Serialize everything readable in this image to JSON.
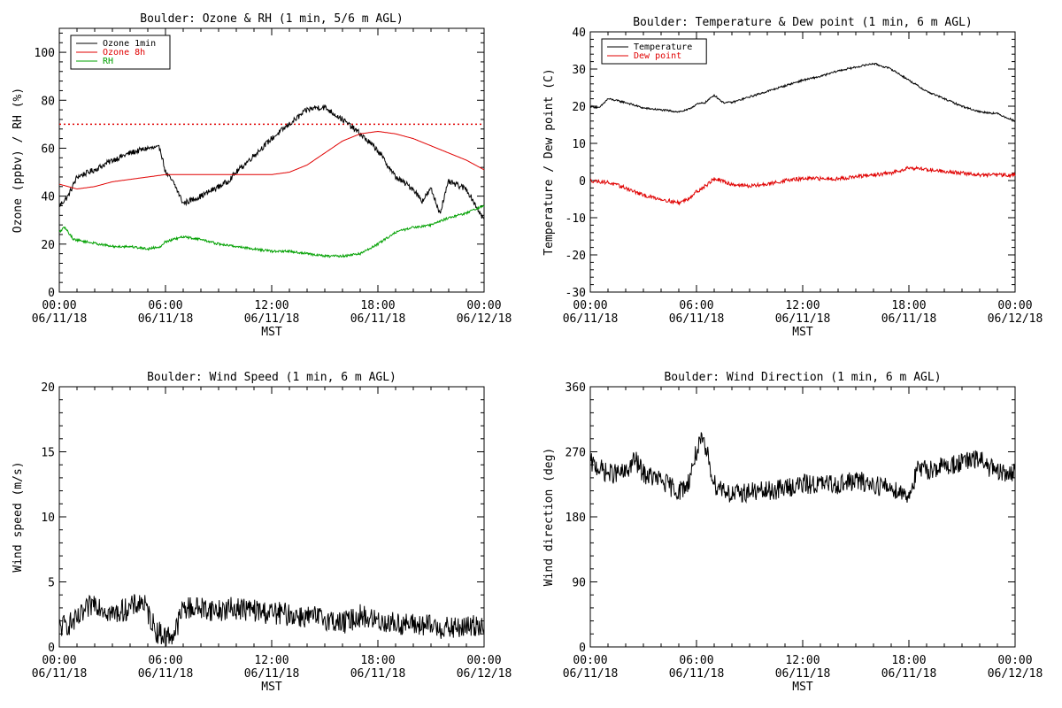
{
  "colors": {
    "black": "#000000",
    "red": "#e00000",
    "green": "#00a000",
    "background": "#ffffff"
  },
  "chart_data": [
    {
      "type": "line",
      "title": "Boulder: Ozone & RH (1 min, 5/6 m AGL)",
      "xlabel": "MST",
      "ylabel": "Ozone (ppbv) / RH (%)",
      "xlim": [
        0,
        24
      ],
      "ylim": [
        0,
        110
      ],
      "x_ticks": [
        {
          "x": 0,
          "time": "00:00",
          "date": "06/11/18"
        },
        {
          "x": 6,
          "time": "06:00",
          "date": "06/11/18"
        },
        {
          "x": 12,
          "time": "12:00",
          "date": "06/11/18"
        },
        {
          "x": 18,
          "time": "18:00",
          "date": "06/11/18"
        },
        {
          "x": 24,
          "time": "00:00",
          "date": "06/12/18"
        }
      ],
      "y_ticks": [
        0,
        20,
        40,
        60,
        80,
        100
      ],
      "grid": false,
      "legend": "top-left",
      "reference_lines": [
        {
          "y": 70,
          "color": "#e00000",
          "style": "dotted"
        }
      ],
      "series": [
        {
          "name": "Ozone 1min",
          "color": "#000000",
          "noise": 1.2,
          "x": [
            0,
            0.5,
            1,
            2,
            3,
            4,
            5,
            5.7,
            6,
            6.5,
            7,
            8,
            9,
            9.5,
            10,
            11,
            12,
            13,
            14,
            14.5,
            15,
            16,
            17,
            18,
            19,
            20,
            20.5,
            21,
            21.5,
            22,
            23,
            24
          ],
          "y": [
            36,
            40,
            48,
            51,
            55,
            58,
            60,
            60,
            50,
            45,
            37,
            40,
            44,
            46,
            50,
            57,
            64,
            70,
            76,
            77,
            77,
            72,
            66,
            59,
            48,
            43,
            38,
            43,
            33,
            46,
            43,
            30
          ]
        },
        {
          "name": "Ozone 8h",
          "color": "#e00000",
          "noise": 0,
          "x": [
            0,
            1,
            2,
            3,
            4,
            5,
            6,
            7,
            8,
            9,
            10,
            11,
            12,
            13,
            14,
            15,
            16,
            17,
            18,
            19,
            20,
            21,
            22,
            23,
            24
          ],
          "y": [
            45,
            43,
            44,
            46,
            47,
            48,
            49,
            49,
            49,
            49,
            49,
            49,
            49,
            50,
            53,
            58,
            63,
            66,
            67,
            66,
            64,
            61,
            58,
            55,
            51
          ]
        },
        {
          "name": "RH",
          "color": "#00a000",
          "noise": 0.5,
          "x": [
            0,
            0.3,
            0.8,
            1.5,
            3,
            4,
            5,
            5.7,
            6,
            6.5,
            7,
            8,
            9,
            10,
            11,
            12,
            13,
            14,
            15,
            16,
            17,
            18,
            19,
            20,
            21,
            22,
            23,
            24
          ],
          "y": [
            25,
            27,
            22,
            21,
            19,
            19,
            18,
            19,
            21,
            22,
            23,
            22,
            20,
            19,
            18,
            17,
            17,
            16,
            15,
            15,
            16,
            20,
            25,
            27,
            28,
            31,
            33,
            36
          ]
        }
      ]
    },
    {
      "type": "line",
      "title": "Boulder: Temperature & Dew point (1 min, 6 m AGL)",
      "xlabel": "MST",
      "ylabel": "Temperature / Dew point (C)",
      "xlim": [
        0,
        24
      ],
      "ylim": [
        -30,
        40
      ],
      "x_ticks": [
        {
          "x": 0,
          "time": "00:00",
          "date": "06/11/18"
        },
        {
          "x": 6,
          "time": "06:00",
          "date": "06/11/18"
        },
        {
          "x": 12,
          "time": "12:00",
          "date": "06/11/18"
        },
        {
          "x": 18,
          "time": "18:00",
          "date": "06/11/18"
        },
        {
          "x": 24,
          "time": "00:00",
          "date": "06/12/18"
        }
      ],
      "y_ticks": [
        -30,
        -20,
        -10,
        0,
        10,
        20,
        30,
        40
      ],
      "grid": false,
      "legend": "top-left",
      "series": [
        {
          "name": "Temperature",
          "color": "#000000",
          "noise": 0.25,
          "x": [
            0,
            0.5,
            1,
            2,
            3,
            4,
            5,
            5.5,
            6,
            6.5,
            7,
            7.5,
            8,
            9,
            10,
            11,
            12,
            13,
            14,
            15,
            16,
            17,
            18,
            19,
            20,
            21,
            22,
            23,
            24
          ],
          "y": [
            20,
            19.5,
            22,
            21,
            19.5,
            19,
            18.5,
            19,
            20.5,
            21,
            23,
            21,
            21,
            22.5,
            24,
            25.5,
            27,
            28,
            29.5,
            30.5,
            31.5,
            30,
            27,
            24,
            22,
            20,
            18.5,
            18,
            16
          ]
        },
        {
          "name": "Dew point",
          "color": "#e00000",
          "noise": 0.5,
          "x": [
            0,
            1,
            2,
            3,
            4,
            5,
            5.5,
            6,
            6.5,
            7,
            8,
            9,
            10,
            11,
            12,
            13,
            14,
            15,
            16,
            17,
            18,
            19,
            20,
            21,
            22,
            23,
            24
          ],
          "y": [
            0,
            -0.5,
            -2,
            -4,
            -5,
            -6,
            -5,
            -3,
            -1.5,
            0.5,
            -1,
            -1.5,
            -1,
            0,
            0.5,
            0.5,
            0.5,
            1,
            1.5,
            2,
            3.5,
            3,
            2.5,
            2,
            1.5,
            1.5,
            1.5
          ]
        }
      ]
    },
    {
      "type": "line",
      "title": "Boulder: Wind Speed (1 min, 6 m AGL)",
      "xlabel": "MST",
      "ylabel": "Wind speed (m/s)",
      "xlim": [
        0,
        24
      ],
      "ylim": [
        0,
        20
      ],
      "x_ticks": [
        {
          "x": 0,
          "time": "00:00",
          "date": "06/11/18"
        },
        {
          "x": 6,
          "time": "06:00",
          "date": "06/11/18"
        },
        {
          "x": 12,
          "time": "12:00",
          "date": "06/11/18"
        },
        {
          "x": 18,
          "time": "18:00",
          "date": "06/11/18"
        },
        {
          "x": 24,
          "time": "00:00",
          "date": "06/12/18"
        }
      ],
      "y_ticks": [
        0,
        5,
        10,
        15,
        20
      ],
      "grid": false,
      "series": [
        {
          "name": "",
          "color": "#000000",
          "noise": 0.9,
          "x": [
            0,
            1,
            2,
            3,
            4,
            4.7,
            5.5,
            6,
            6.5,
            7,
            8,
            9,
            10,
            11,
            12,
            13,
            14,
            15,
            16,
            17,
            18,
            19,
            20,
            21,
            22,
            23,
            24
          ],
          "y": [
            1.5,
            2,
            3.5,
            2.5,
            3,
            3.5,
            1.2,
            0.8,
            1,
            3,
            3,
            2.8,
            3,
            2.8,
            2.6,
            2.5,
            2.3,
            2.2,
            1.8,
            2.4,
            2,
            1.8,
            1.7,
            1.6,
            1.4,
            1.5,
            1.8
          ]
        }
      ]
    },
    {
      "type": "line",
      "title": "Boulder: Wind Direction (1 min, 6 m AGL)",
      "xlabel": "MST",
      "ylabel": "Wind direction (deg)",
      "xlim": [
        0,
        24
      ],
      "ylim": [
        0,
        360
      ],
      "x_ticks": [
        {
          "x": 0,
          "time": "00:00",
          "date": "06/11/18"
        },
        {
          "x": 6,
          "time": "06:00",
          "date": "06/11/18"
        },
        {
          "x": 12,
          "time": "12:00",
          "date": "06/11/18"
        },
        {
          "x": 18,
          "time": "18:00",
          "date": "06/11/18"
        },
        {
          "x": 24,
          "time": "00:00",
          "date": "06/12/18"
        }
      ],
      "y_ticks": [
        0,
        90,
        180,
        270,
        360
      ],
      "grid": false,
      "series": [
        {
          "name": "",
          "color": "#000000",
          "noise": 14,
          "x": [
            0,
            1,
            2,
            2.5,
            3,
            4,
            5,
            5.5,
            6,
            6.3,
            6.7,
            7,
            7.5,
            8,
            9,
            10,
            11,
            12,
            13,
            14,
            15,
            16,
            17,
            18,
            18.5,
            19,
            20,
            21,
            22,
            23,
            24
          ],
          "y": [
            255,
            240,
            240,
            260,
            240,
            230,
            215,
            225,
            270,
            285,
            260,
            225,
            220,
            210,
            215,
            215,
            220,
            225,
            225,
            225,
            230,
            225,
            220,
            210,
            245,
            245,
            250,
            255,
            260,
            240,
            240
          ]
        }
      ]
    }
  ]
}
